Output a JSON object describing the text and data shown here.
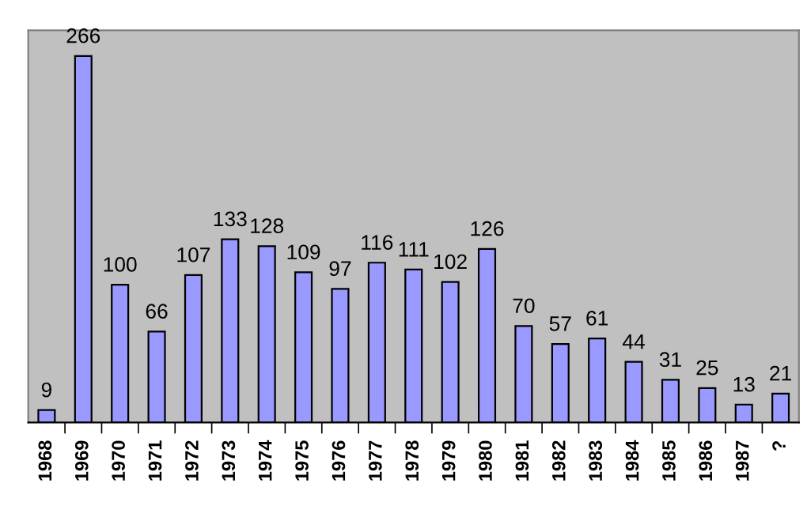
{
  "chart_data": {
    "type": "bar",
    "categories": [
      "1968",
      "1969",
      "1970",
      "1971",
      "1972",
      "1973",
      "1974",
      "1975",
      "1976",
      "1977",
      "1978",
      "1979",
      "1980",
      "1981",
      "1982",
      "1983",
      "1984",
      "1985",
      "1986",
      "1987",
      "?"
    ],
    "values": [
      9,
      266,
      100,
      66,
      107,
      133,
      128,
      109,
      97,
      116,
      111,
      102,
      126,
      70,
      57,
      61,
      44,
      31,
      25,
      13,
      21
    ],
    "color": "#9999ff",
    "data_labels": true,
    "grid": false,
    "legend": false
  }
}
